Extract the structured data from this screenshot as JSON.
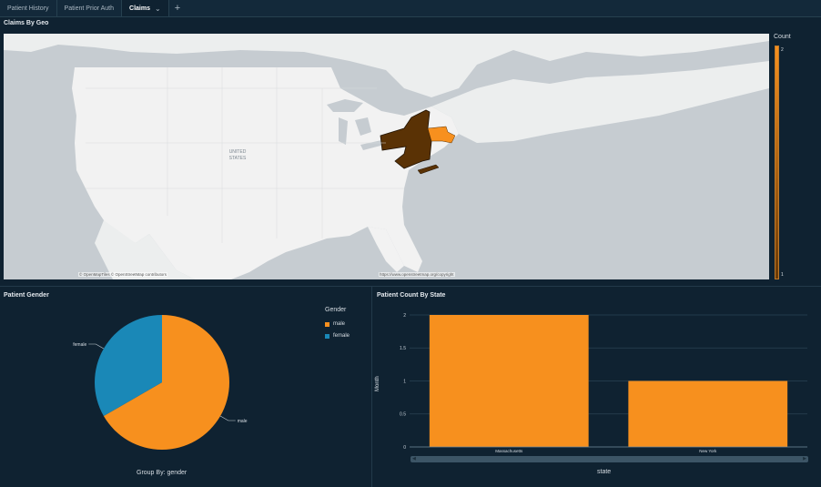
{
  "tabs": [
    {
      "label": "Patient History"
    },
    {
      "label": "Patient Prior Auth"
    },
    {
      "label": "Claims"
    }
  ],
  "tab_add_icon": "plus-icon",
  "claims_geo": {
    "title": "Claims By Geo",
    "country_label_1": "UNITED",
    "country_label_2": "STATES",
    "attribution_left": "© OpenMapTiles © OpenStreetMap contributors",
    "attribution_right": "https://www.openstreetmap.org/copyright",
    "legend_title": "Count",
    "legend_max": "2",
    "legend_min": "1",
    "states": [
      {
        "name": "New York",
        "count": 1,
        "color": "#5a3205"
      },
      {
        "name": "Massachusetts",
        "count": 2,
        "color": "#f7901e"
      }
    ]
  },
  "patient_gender": {
    "title": "Patient Gender",
    "legend_title": "Gender",
    "group_by": "Group By: gender",
    "chart_data": {
      "type": "pie",
      "categories": [
        "male",
        "female"
      ],
      "values": [
        2,
        1
      ],
      "colors": [
        "#f7901e",
        "#1a88b7"
      ],
      "legend": "right"
    }
  },
  "patient_state": {
    "title": "Patient Count By State",
    "chart_data": {
      "type": "bar",
      "categories": [
        "Massachusetts",
        "New York"
      ],
      "values": [
        2,
        1
      ],
      "xlabel": "state",
      "ylabel": "Month",
      "ylim": [
        0,
        2
      ],
      "yticks": [
        "0",
        "0.5",
        "1",
        "1.5",
        "2"
      ],
      "bar_color": "#f7901e",
      "grid": true
    }
  }
}
